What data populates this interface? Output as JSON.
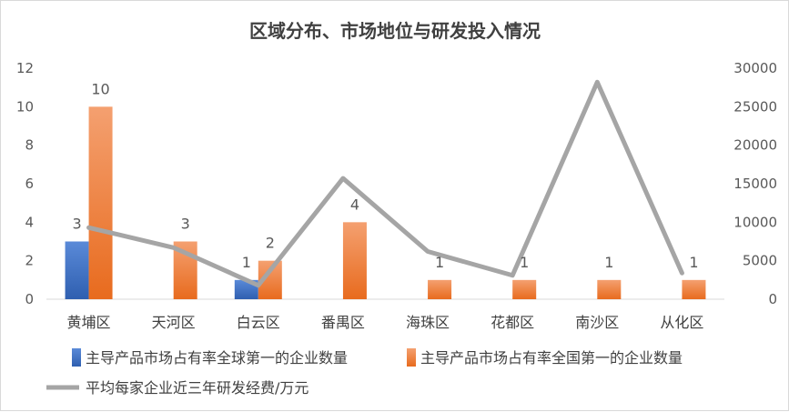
{
  "chart_data": {
    "type": "bar",
    "title": "区域分布、市场地位与研发投入情况",
    "categories": [
      "黄埔区",
      "天河区",
      "白云区",
      "番禺区",
      "海珠区",
      "花都区",
      "南沙区",
      "从化区"
    ],
    "ylim": [
      0,
      12
    ],
    "yticks": [
      0,
      2,
      4,
      6,
      8,
      10,
      12
    ],
    "y2lim": [
      0,
      30000
    ],
    "y2ticks": [
      0,
      5000,
      10000,
      15000,
      20000,
      25000,
      30000
    ],
    "grid": false,
    "legend_position": "bottom",
    "series": [
      {
        "name": "主导产品市场占有率全球第一的企业数量",
        "type": "bar",
        "axis": "left",
        "color": "#4472C4",
        "values": [
          3,
          null,
          1,
          null,
          null,
          null,
          null,
          null
        ]
      },
      {
        "name": "主导产品市场占有率全国第一的企业数量",
        "type": "bar",
        "axis": "left",
        "color": "#ED7D31",
        "values": [
          10,
          3,
          2,
          4,
          1,
          1,
          1,
          1
        ]
      },
      {
        "name": "平均每家企业近三年研发经费/万元",
        "type": "line",
        "axis": "right",
        "color": "#A5A5A5",
        "values": [
          9300,
          6700,
          1800,
          15700,
          6200,
          3100,
          28200,
          3400
        ]
      }
    ]
  }
}
